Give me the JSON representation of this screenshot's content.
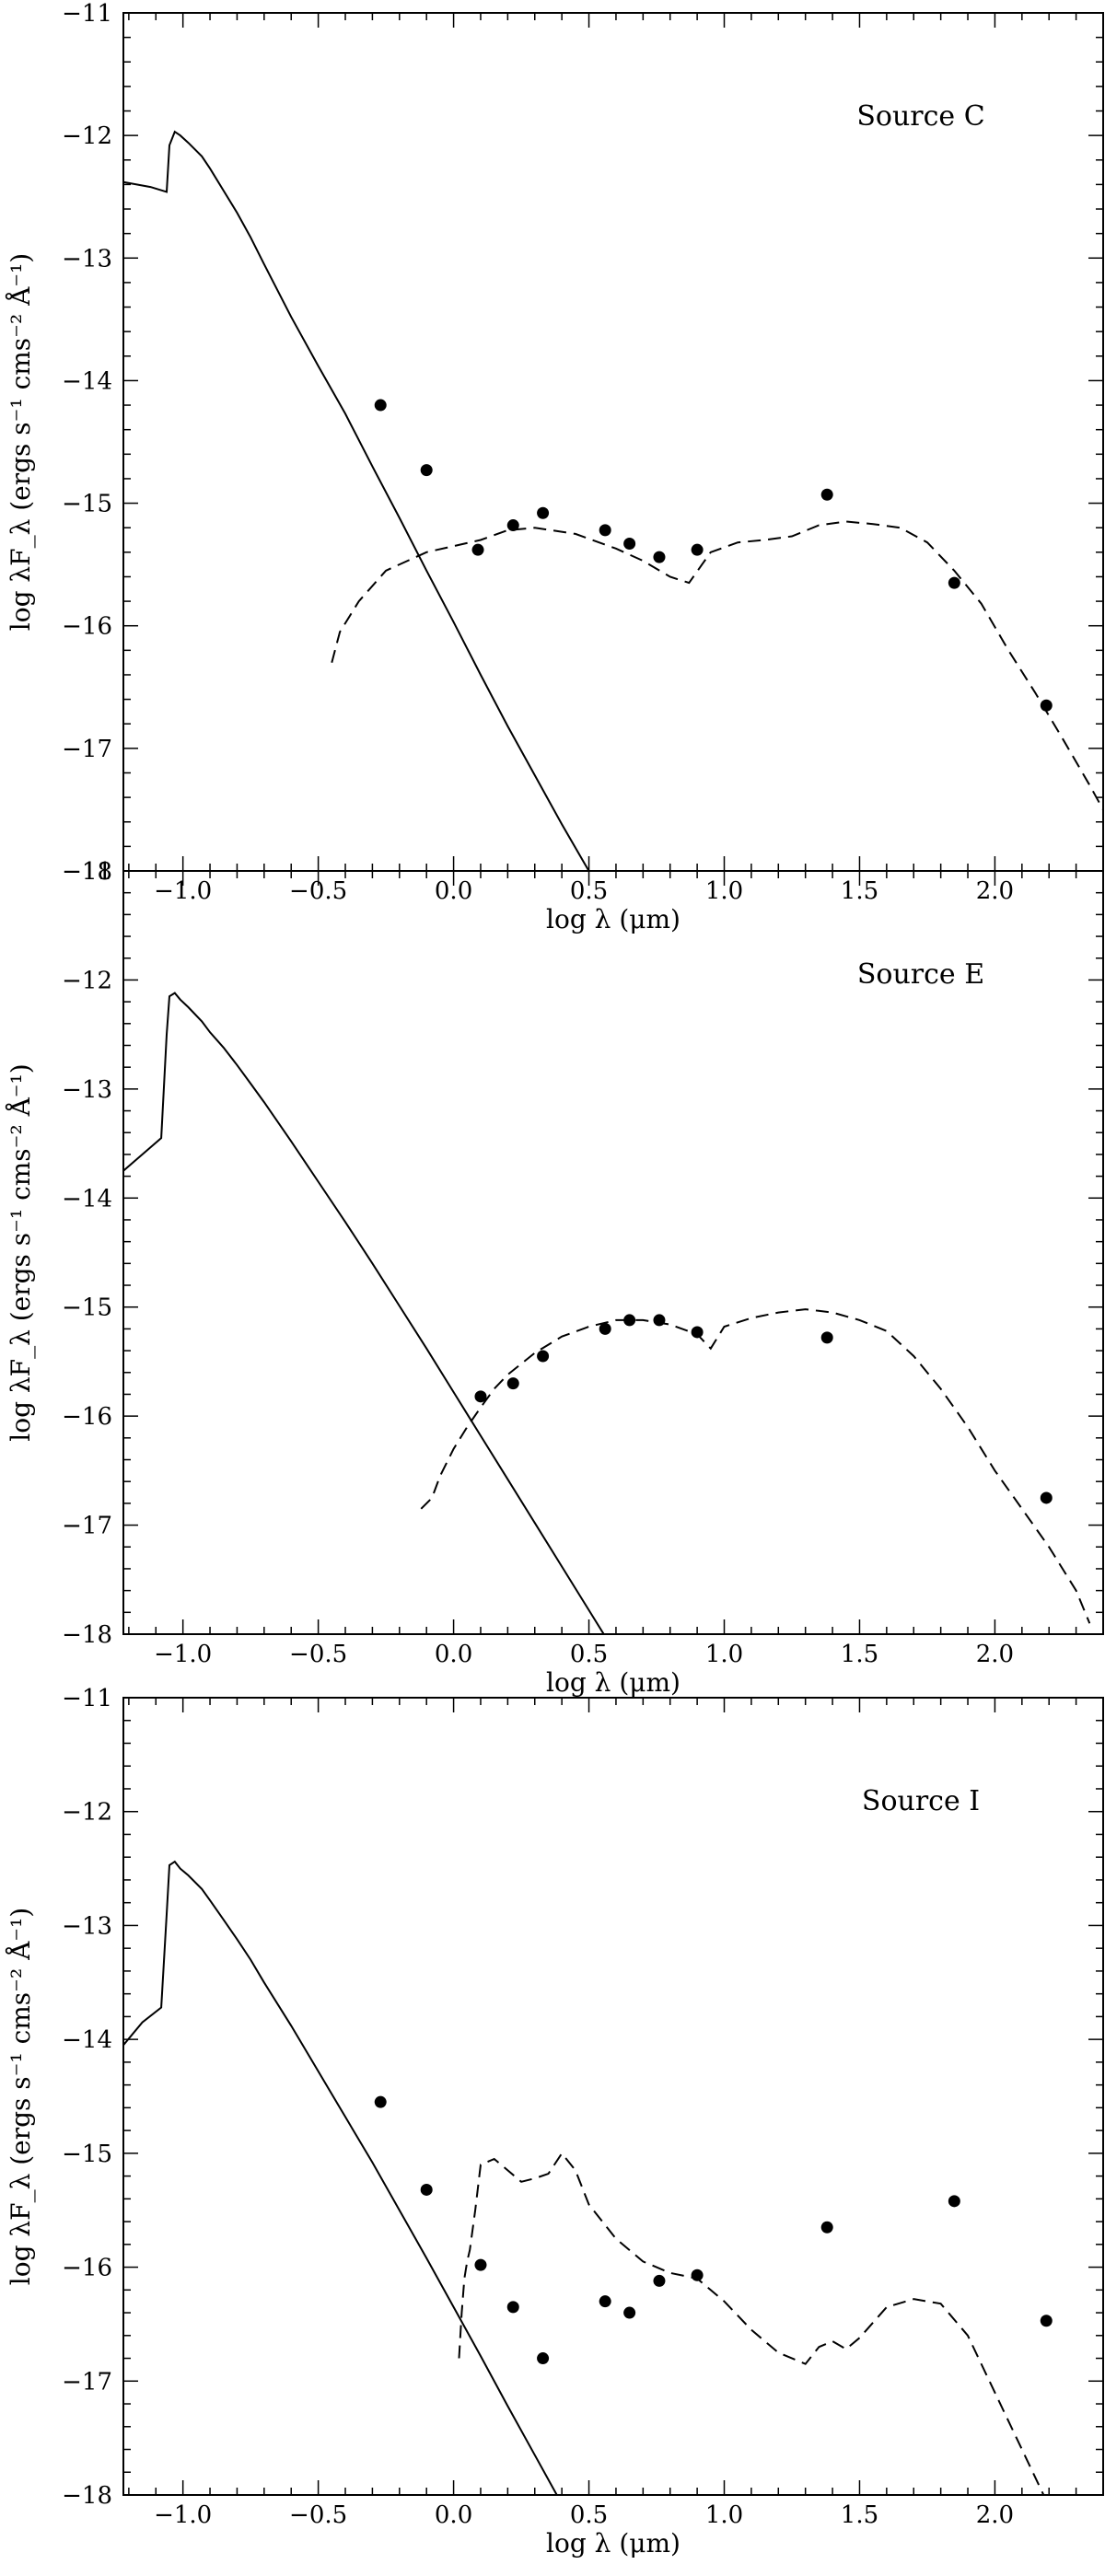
{
  "chart_data": [
    {
      "type": "line",
      "panel": "top",
      "annotation": "Source C",
      "xlabel": "log λ (μm)",
      "ylabel": "log λF_λ (ergs s⁻¹ cms⁻² Å⁻¹)",
      "xlim": [
        -1.22,
        2.4
      ],
      "ylim": [
        -18,
        -11
      ],
      "xticks": [
        -1.0,
        -0.5,
        0.0,
        0.5,
        1.0,
        1.5,
        2.0
      ],
      "xtick_labels": [
        "−1.0",
        "−0.5",
        "0.0",
        "0.5",
        "1.0",
        "1.5",
        "2.0"
      ],
      "yticks": [
        -18,
        -17,
        -16,
        -15,
        -14,
        -13,
        -12,
        -11
      ],
      "ytick_labels": [
        "−18",
        "−17",
        "−16",
        "−15",
        "−14",
        "−13",
        "−12",
        "−11"
      ],
      "grid": false,
      "series": [
        {
          "style": "solid",
          "x": [
            -1.22,
            -1.12,
            -1.06,
            -1.05,
            -1.03,
            -1.01,
            -0.98,
            -0.93,
            -0.9,
            -0.85,
            -0.8,
            -0.75,
            -0.7,
            -0.6,
            -0.5,
            -0.4,
            -0.3,
            -0.2,
            -0.1,
            0.0,
            0.1,
            0.2,
            0.3,
            0.4,
            0.5,
            0.6,
            0.68
          ],
          "y": [
            -12.38,
            -12.42,
            -12.46,
            -12.08,
            -11.97,
            -12.0,
            -12.06,
            -12.17,
            -12.27,
            -12.45,
            -12.63,
            -12.83,
            -13.05,
            -13.48,
            -13.88,
            -14.27,
            -14.7,
            -15.12,
            -15.55,
            -15.97,
            -16.4,
            -16.82,
            -17.22,
            -17.62,
            -18.0,
            -18.4,
            -18.72
          ]
        },
        {
          "style": "dashed",
          "x": [
            -0.45,
            -0.42,
            -0.35,
            -0.25,
            -0.1,
            0.0,
            0.1,
            0.2,
            0.3,
            0.45,
            0.6,
            0.7,
            0.8,
            0.87,
            0.95,
            1.05,
            1.15,
            1.25,
            1.35,
            1.45,
            1.55,
            1.65,
            1.75,
            1.85,
            1.95,
            2.05,
            2.15,
            2.25,
            2.35,
            2.45
          ],
          "y": [
            -16.3,
            -16.05,
            -15.8,
            -15.55,
            -15.4,
            -15.35,
            -15.3,
            -15.22,
            -15.2,
            -15.25,
            -15.37,
            -15.47,
            -15.6,
            -15.65,
            -15.4,
            -15.32,
            -15.3,
            -15.27,
            -15.18,
            -15.15,
            -15.17,
            -15.2,
            -15.32,
            -15.55,
            -15.82,
            -16.2,
            -16.55,
            -16.92,
            -17.3,
            -17.7
          ]
        },
        {
          "style": "points",
          "x": [
            -0.27,
            -0.1,
            0.09,
            0.22,
            0.33,
            0.56,
            0.65,
            0.76,
            0.9,
            1.38,
            1.85,
            2.19
          ],
          "y": [
            -14.2,
            -14.73,
            -15.38,
            -15.18,
            -15.08,
            -15.22,
            -15.33,
            -15.44,
            -15.38,
            -14.93,
            -15.65,
            -16.65
          ]
        }
      ]
    },
    {
      "type": "line",
      "panel": "middle",
      "annotation": "Source E",
      "xlabel": "log λ (μm)",
      "ylabel": "log λF_λ (ergs s⁻¹ cms⁻² Å⁻¹)",
      "xlim": [
        -1.22,
        2.4
      ],
      "ylim": [
        -18,
        -11
      ],
      "xticks": [
        -1.0,
        -0.5,
        0.0,
        0.5,
        1.0,
        1.5,
        2.0
      ],
      "xtick_labels": [
        "−1.0",
        "−0.5",
        "0.0",
        "0.5",
        "1.0",
        "1.5",
        "2.0"
      ],
      "yticks": [
        -18,
        -17,
        -16,
        -15,
        -14,
        -13,
        -12,
        -11
      ],
      "ytick_labels": [
        "−18",
        "−17",
        "−16",
        "−15",
        "−14",
        "−13",
        "−12",
        "−11"
      ],
      "grid": false,
      "series": [
        {
          "style": "solid",
          "x": [
            -1.22,
            -1.15,
            -1.08,
            -1.06,
            -1.05,
            -1.03,
            -1.01,
            -0.98,
            -0.93,
            -0.9,
            -0.85,
            -0.8,
            -0.75,
            -0.7,
            -0.6,
            -0.5,
            -0.4,
            -0.3,
            -0.2,
            -0.1,
            0.0,
            0.1,
            0.2,
            0.3,
            0.4,
            0.5,
            0.6,
            0.68
          ],
          "y": [
            -13.75,
            -13.6,
            -13.45,
            -12.5,
            -12.15,
            -12.12,
            -12.18,
            -12.25,
            -12.38,
            -12.48,
            -12.62,
            -12.78,
            -12.95,
            -13.12,
            -13.48,
            -13.85,
            -14.22,
            -14.6,
            -14.99,
            -15.38,
            -15.78,
            -16.18,
            -16.58,
            -16.98,
            -17.38,
            -17.78,
            -18.18,
            -18.5
          ]
        },
        {
          "style": "dashed",
          "x": [
            -0.12,
            -0.08,
            -0.05,
            0.0,
            0.05,
            0.1,
            0.15,
            0.2,
            0.3,
            0.4,
            0.5,
            0.6,
            0.7,
            0.8,
            0.9,
            0.95,
            1.0,
            1.1,
            1.2,
            1.3,
            1.4,
            1.5,
            1.6,
            1.7,
            1.8,
            1.9,
            2.0,
            2.1,
            2.2,
            2.3,
            2.35
          ],
          "y": [
            -16.85,
            -16.75,
            -16.55,
            -16.3,
            -16.1,
            -15.92,
            -15.75,
            -15.62,
            -15.42,
            -15.27,
            -15.18,
            -15.12,
            -15.12,
            -15.16,
            -15.25,
            -15.38,
            -15.18,
            -15.1,
            -15.05,
            -15.02,
            -15.05,
            -15.12,
            -15.22,
            -15.45,
            -15.75,
            -16.1,
            -16.5,
            -16.85,
            -17.2,
            -17.6,
            -17.9
          ]
        },
        {
          "style": "points",
          "x": [
            0.1,
            0.22,
            0.33,
            0.56,
            0.65,
            0.76,
            0.9,
            1.38,
            2.19
          ],
          "y": [
            -15.82,
            -15.7,
            -15.45,
            -15.2,
            -15.12,
            -15.12,
            -15.23,
            -15.28,
            -16.75
          ]
        }
      ]
    },
    {
      "type": "line",
      "panel": "bottom",
      "annotation": "Source I",
      "xlabel": "log λ (μm)",
      "ylabel": "log λF_λ (ergs s⁻¹ cms⁻² Å⁻¹)",
      "xlim": [
        -1.22,
        2.4
      ],
      "ylim": [
        -18,
        -11
      ],
      "xticks": [
        -1.0,
        -0.5,
        0.0,
        0.5,
        1.0,
        1.5,
        2.0
      ],
      "xtick_labels": [
        "−1.0",
        "−0.5",
        "0.0",
        "0.5",
        "1.0",
        "1.5",
        "2.0"
      ],
      "yticks": [
        -18,
        -17,
        -16,
        -15,
        -14,
        -13,
        -12,
        -11
      ],
      "ytick_labels": [
        "−18",
        "−17",
        "−16",
        "−15",
        "−14",
        "−13",
        "−12",
        "−11"
      ],
      "grid": false,
      "series": [
        {
          "style": "solid",
          "x": [
            -1.22,
            -1.15,
            -1.08,
            -1.06,
            -1.05,
            -1.03,
            -1.01,
            -0.98,
            -0.93,
            -0.9,
            -0.85,
            -0.8,
            -0.75,
            -0.7,
            -0.6,
            -0.5,
            -0.4,
            -0.3,
            -0.2,
            -0.1,
            0.0,
            0.1,
            0.2,
            0.3,
            0.4,
            0.5,
            0.6
          ],
          "y": [
            -14.05,
            -13.85,
            -13.72,
            -12.9,
            -12.47,
            -12.44,
            -12.5,
            -12.56,
            -12.68,
            -12.78,
            -12.95,
            -13.12,
            -13.3,
            -13.5,
            -13.88,
            -14.28,
            -14.68,
            -15.08,
            -15.5,
            -15.92,
            -16.35,
            -16.78,
            -17.22,
            -17.65,
            -18.08,
            -18.5,
            -18.95
          ]
        },
        {
          "style": "dashed",
          "x": [
            0.02,
            0.03,
            0.04,
            0.05,
            0.06,
            0.08,
            0.1,
            0.15,
            0.2,
            0.25,
            0.3,
            0.35,
            0.4,
            0.45,
            0.5,
            0.6,
            0.7,
            0.8,
            0.9,
            1.0,
            1.1,
            1.2,
            1.3,
            1.35,
            1.4,
            1.45,
            1.5,
            1.6,
            1.7,
            1.8,
            1.9,
            2.0,
            2.1,
            2.18
          ],
          "y": [
            -16.8,
            -16.4,
            -16.1,
            -15.95,
            -15.85,
            -15.5,
            -15.1,
            -15.05,
            -15.15,
            -15.25,
            -15.22,
            -15.18,
            -15.0,
            -15.15,
            -15.45,
            -15.75,
            -15.95,
            -16.05,
            -16.1,
            -16.3,
            -16.55,
            -16.75,
            -16.85,
            -16.7,
            -16.65,
            -16.72,
            -16.62,
            -16.35,
            -16.28,
            -16.32,
            -16.6,
            -17.1,
            -17.6,
            -18.0
          ]
        },
        {
          "style": "points",
          "x": [
            -0.27,
            -0.1,
            0.1,
            0.22,
            0.33,
            0.56,
            0.65,
            0.76,
            0.9,
            1.38,
            1.85,
            2.19
          ],
          "y": [
            -14.55,
            -15.32,
            -15.98,
            -16.35,
            -16.8,
            -16.3,
            -16.4,
            -16.12,
            -16.07,
            -15.65,
            -15.42,
            -16.47
          ]
        }
      ]
    }
  ]
}
